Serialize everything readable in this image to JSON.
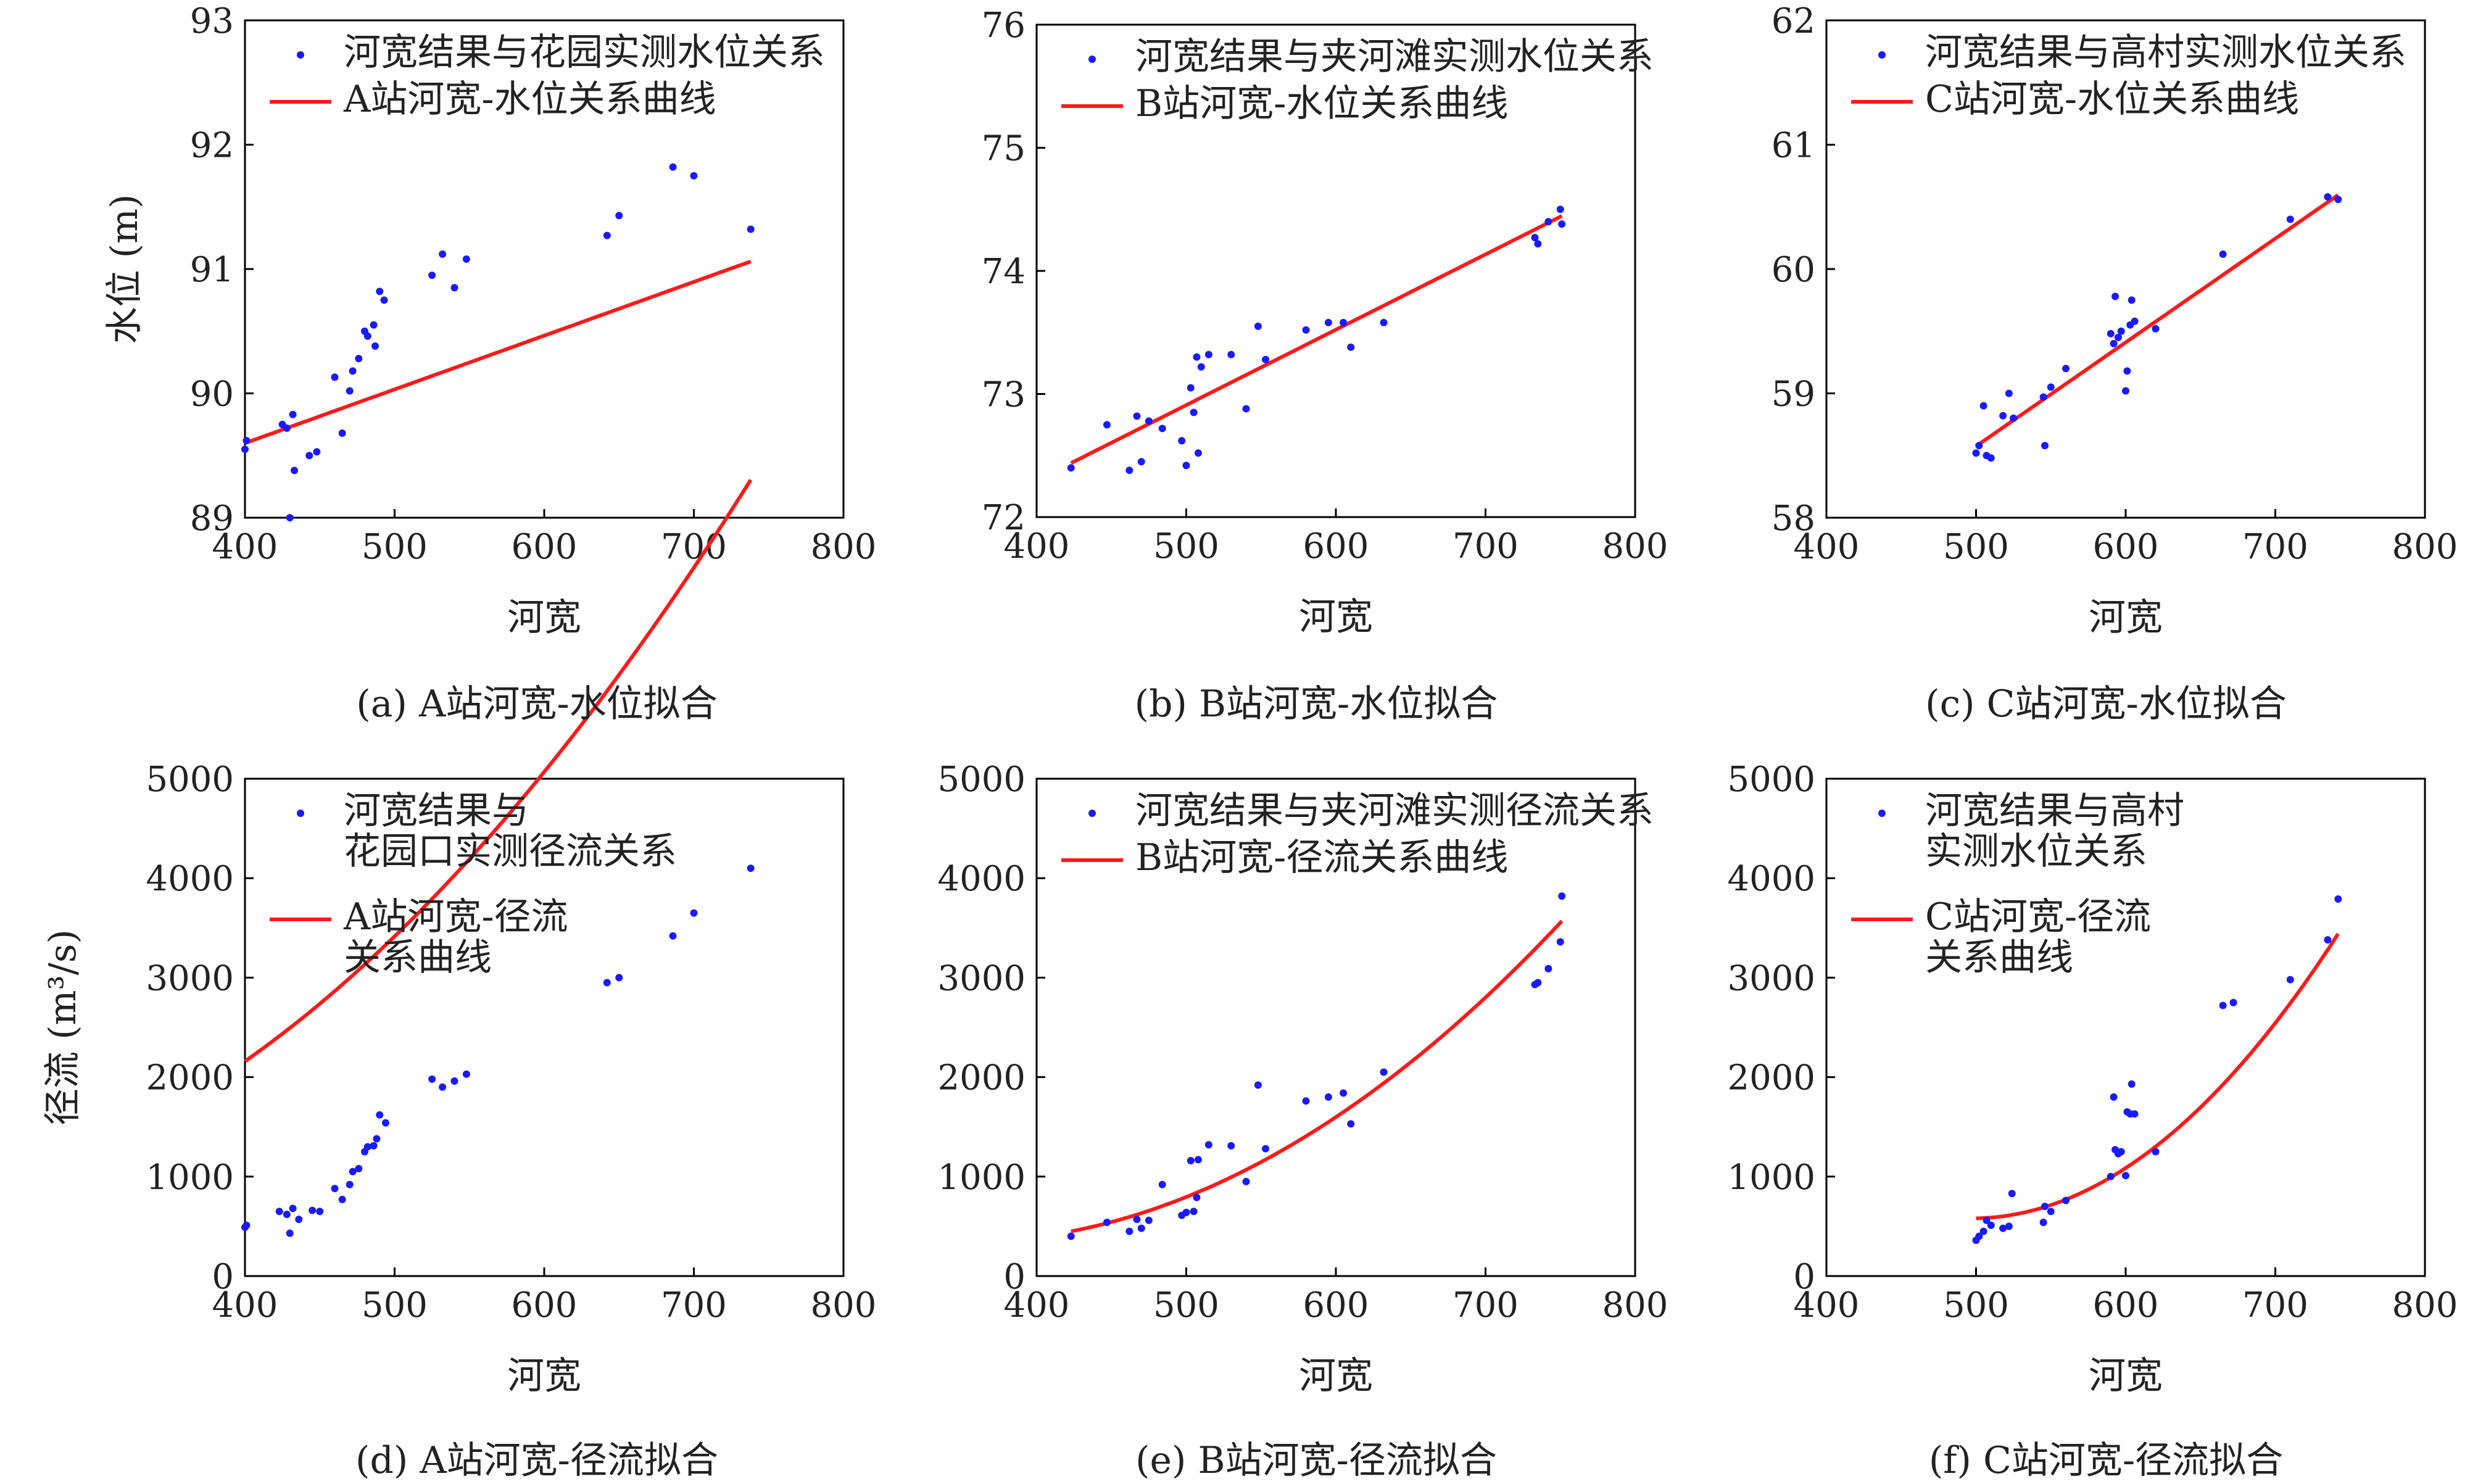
{
  "colors": {
    "points": "#1a1aff",
    "curve": "#ff1a1a",
    "axis": "#000000"
  },
  "chart_data": [
    {
      "type": "scatter",
      "panel": "a",
      "caption": "(a) A站河宽-水位拟合",
      "xlabel": "河宽",
      "ylabel": "水位 (m)",
      "xlim": [
        400,
        800
      ],
      "ylim": [
        89,
        93
      ],
      "xticks": [
        400,
        500,
        600,
        700,
        800
      ],
      "yticks": [
        89,
        90,
        91,
        92,
        93
      ],
      "legend_lines": {
        "points": [
          "河宽结果与花园实测水位关系"
        ],
        "curve": [
          "A站河宽-水位关系曲线"
        ]
      },
      "points": [
        [
          400,
          89.55
        ],
        [
          401,
          89.62
        ],
        [
          425,
          89.75
        ],
        [
          428,
          89.72
        ],
        [
          430,
          89.0
        ],
        [
          432,
          89.83
        ],
        [
          433,
          89.38
        ],
        [
          443,
          89.5
        ],
        [
          448,
          89.53
        ],
        [
          460,
          90.13
        ],
        [
          465,
          89.68
        ],
        [
          470,
          90.02
        ],
        [
          472,
          90.18
        ],
        [
          476,
          90.28
        ],
        [
          480,
          90.5
        ],
        [
          482,
          90.46
        ],
        [
          486,
          90.55
        ],
        [
          487,
          90.38
        ],
        [
          490,
          90.82
        ],
        [
          493,
          90.75
        ],
        [
          525,
          90.95
        ],
        [
          532,
          91.12
        ],
        [
          540,
          90.85
        ],
        [
          548,
          91.08
        ],
        [
          642,
          91.27
        ],
        [
          650,
          91.43
        ],
        [
          686,
          91.82
        ],
        [
          700,
          91.75
        ],
        [
          738,
          91.32
        ]
      ],
      "fit": {
        "kind": "linear",
        "coeffs": [
          0.004324,
          87.87
        ],
        "x_range": [
          400,
          738
        ]
      }
    },
    {
      "type": "scatter",
      "panel": "b",
      "caption": "(b) B站河宽-水位拟合",
      "xlabel": "河宽",
      "ylabel": "",
      "xlim": [
        400,
        800
      ],
      "ylim": [
        72,
        76
      ],
      "xticks": [
        400,
        500,
        600,
        700,
        800
      ],
      "yticks": [
        72,
        73,
        74,
        75,
        76
      ],
      "legend_lines": {
        "points": [
          "河宽结果与夹河滩实测水位关系"
        ],
        "curve": [
          "B站河宽-水位关系曲线"
        ]
      },
      "points": [
        [
          423,
          72.4
        ],
        [
          447,
          72.75
        ],
        [
          462,
          72.38
        ],
        [
          467,
          72.82
        ],
        [
          470,
          72.45
        ],
        [
          475,
          72.78
        ],
        [
          484,
          72.72
        ],
        [
          497,
          72.62
        ],
        [
          500,
          72.42
        ],
        [
          503,
          73.05
        ],
        [
          505,
          72.85
        ],
        [
          507,
          73.3
        ],
        [
          508,
          72.52
        ],
        [
          510,
          73.22
        ],
        [
          515,
          73.32
        ],
        [
          530,
          73.32
        ],
        [
          540,
          72.88
        ],
        [
          548,
          73.55
        ],
        [
          553,
          73.28
        ],
        [
          580,
          73.52
        ],
        [
          595,
          73.58
        ],
        [
          605,
          73.58
        ],
        [
          610,
          73.38
        ],
        [
          632,
          73.58
        ],
        [
          733,
          74.27
        ],
        [
          735,
          74.22
        ],
        [
          742,
          74.4
        ],
        [
          750,
          74.5
        ],
        [
          751,
          74.38
        ]
      ],
      "fit": {
        "kind": "linear",
        "coeffs": [
          0.00612,
          69.85
        ],
        "x_range": [
          423,
          751
        ]
      }
    },
    {
      "type": "scatter",
      "panel": "c",
      "caption": "(c) C站河宽-水位拟合",
      "xlabel": "河宽",
      "ylabel": "",
      "xlim": [
        400,
        800
      ],
      "ylim": [
        58,
        62
      ],
      "xticks": [
        400,
        500,
        600,
        700,
        800
      ],
      "yticks": [
        58,
        59,
        60,
        61,
        62
      ],
      "legend_lines": {
        "points": [
          "河宽结果与高村实测水位关系"
        ],
        "curve": [
          "C站河宽-水位关系曲线"
        ]
      },
      "points": [
        [
          500,
          58.52
        ],
        [
          502,
          58.58
        ],
        [
          505,
          58.9
        ],
        [
          507,
          58.5
        ],
        [
          510,
          58.48
        ],
        [
          518,
          58.82
        ],
        [
          522,
          59.0
        ],
        [
          525,
          58.8
        ],
        [
          545,
          58.97
        ],
        [
          546,
          58.58
        ],
        [
          550,
          59.05
        ],
        [
          560,
          59.2
        ],
        [
          590,
          59.48
        ],
        [
          592,
          59.4
        ],
        [
          593,
          59.78
        ],
        [
          595,
          59.45
        ],
        [
          597,
          59.5
        ],
        [
          600,
          59.02
        ],
        [
          601,
          59.18
        ],
        [
          603,
          59.55
        ],
        [
          604,
          59.75
        ],
        [
          606,
          59.58
        ],
        [
          620,
          59.52
        ],
        [
          665,
          60.12
        ],
        [
          710,
          60.4
        ],
        [
          735,
          60.58
        ],
        [
          742,
          60.56
        ]
      ],
      "fit": {
        "kind": "linear",
        "coeffs": [
          0.00835,
          54.4
        ],
        "x_range": [
          500,
          742
        ]
      }
    },
    {
      "type": "scatter",
      "panel": "d",
      "caption": "(d) A站河宽-径流拟合",
      "xlabel": "河宽",
      "ylabel": "径流 (m³/s)",
      "xlim": [
        400,
        800
      ],
      "ylim": [
        0,
        5000
      ],
      "xticks": [
        400,
        500,
        600,
        700,
        800
      ],
      "yticks": [
        0,
        1000,
        2000,
        3000,
        4000,
        5000
      ],
      "legend_lines": {
        "points": [
          "河宽结果与",
          "花园口实测径流关系"
        ],
        "curve": [
          "A站河宽-径流",
          "关系曲线"
        ]
      },
      "points": [
        [
          400,
          490
        ],
        [
          401,
          510
        ],
        [
          423,
          650
        ],
        [
          428,
          620
        ],
        [
          430,
          430
        ],
        [
          432,
          680
        ],
        [
          436,
          570
        ],
        [
          445,
          660
        ],
        [
          450,
          650
        ],
        [
          460,
          880
        ],
        [
          465,
          770
        ],
        [
          470,
          920
        ],
        [
          472,
          1050
        ],
        [
          476,
          1080
        ],
        [
          480,
          1250
        ],
        [
          482,
          1300
        ],
        [
          486,
          1310
        ],
        [
          488,
          1380
        ],
        [
          490,
          1620
        ],
        [
          494,
          1540
        ],
        [
          525,
          1980
        ],
        [
          532,
          1900
        ],
        [
          540,
          1960
        ],
        [
          548,
          2030
        ],
        [
          642,
          2950
        ],
        [
          650,
          3000
        ],
        [
          686,
          3420
        ],
        [
          700,
          3650
        ],
        [
          738,
          4100
        ]
      ],
      "fit": {
        "kind": "quadratic",
        "coeffs": [
          0.0199,
          -5.35,
          1115
        ],
        "x_range": [
          400,
          738
        ]
      }
    },
    {
      "type": "scatter",
      "panel": "e",
      "caption": "(e) B站河宽-径流拟合",
      "xlabel": "河宽",
      "ylabel": "",
      "xlim": [
        400,
        800
      ],
      "ylim": [
        0,
        5000
      ],
      "xticks": [
        400,
        500,
        600,
        700,
        800
      ],
      "yticks": [
        0,
        1000,
        2000,
        3000,
        4000,
        5000
      ],
      "legend_lines": {
        "points": [
          "河宽结果与夹河滩实测径流关系"
        ],
        "curve": [
          "B站河宽-径流关系曲线"
        ]
      },
      "points": [
        [
          423,
          400
        ],
        [
          447,
          540
        ],
        [
          462,
          450
        ],
        [
          467,
          570
        ],
        [
          470,
          480
        ],
        [
          475,
          560
        ],
        [
          484,
          920
        ],
        [
          497,
          610
        ],
        [
          500,
          640
        ],
        [
          503,
          1160
        ],
        [
          505,
          650
        ],
        [
          507,
          790
        ],
        [
          508,
          1170
        ],
        [
          515,
          1320
        ],
        [
          530,
          1310
        ],
        [
          540,
          950
        ],
        [
          548,
          1920
        ],
        [
          553,
          1280
        ],
        [
          580,
          1760
        ],
        [
          595,
          1800
        ],
        [
          605,
          1840
        ],
        [
          610,
          1530
        ],
        [
          632,
          2050
        ],
        [
          733,
          2930
        ],
        [
          735,
          2950
        ],
        [
          742,
          3090
        ],
        [
          750,
          3360
        ],
        [
          751,
          3820
        ]
      ],
      "fit": {
        "kind": "quadratic",
        "coeffs": [
          0.02,
          -13.97,
          2780
        ],
        "x_range": [
          423,
          751
        ]
      }
    },
    {
      "type": "scatter",
      "panel": "f",
      "caption": "(f) C站河宽-径流拟合",
      "xlabel": "河宽",
      "ylabel": "",
      "xlim": [
        400,
        800
      ],
      "ylim": [
        0,
        5000
      ],
      "xticks": [
        400,
        500,
        600,
        700,
        800
      ],
      "yticks": [
        0,
        1000,
        2000,
        3000,
        4000,
        5000
      ],
      "legend_lines": {
        "points": [
          "河宽结果与高村",
          "实测水位关系"
        ],
        "curve": [
          "C站河宽-径流",
          "关系曲线"
        ]
      },
      "points": [
        [
          500,
          360
        ],
        [
          502,
          400
        ],
        [
          505,
          450
        ],
        [
          507,
          560
        ],
        [
          510,
          510
        ],
        [
          518,
          480
        ],
        [
          522,
          500
        ],
        [
          524,
          830
        ],
        [
          545,
          540
        ],
        [
          546,
          700
        ],
        [
          550,
          650
        ],
        [
          560,
          760
        ],
        [
          590,
          1000
        ],
        [
          592,
          1800
        ],
        [
          593,
          1270
        ],
        [
          595,
          1230
        ],
        [
          597,
          1250
        ],
        [
          600,
          1010
        ],
        [
          601,
          1650
        ],
        [
          603,
          1630
        ],
        [
          604,
          1930
        ],
        [
          606,
          1630
        ],
        [
          620,
          1250
        ],
        [
          665,
          2720
        ],
        [
          672,
          2750
        ],
        [
          710,
          2980
        ],
        [
          735,
          3380
        ],
        [
          742,
          3790
        ]
      ],
      "fit": {
        "kind": "quadratic",
        "coeffs": [
          0.0476,
          -47.3,
          12330
        ],
        "x_range": [
          500,
          742
        ]
      }
    }
  ]
}
